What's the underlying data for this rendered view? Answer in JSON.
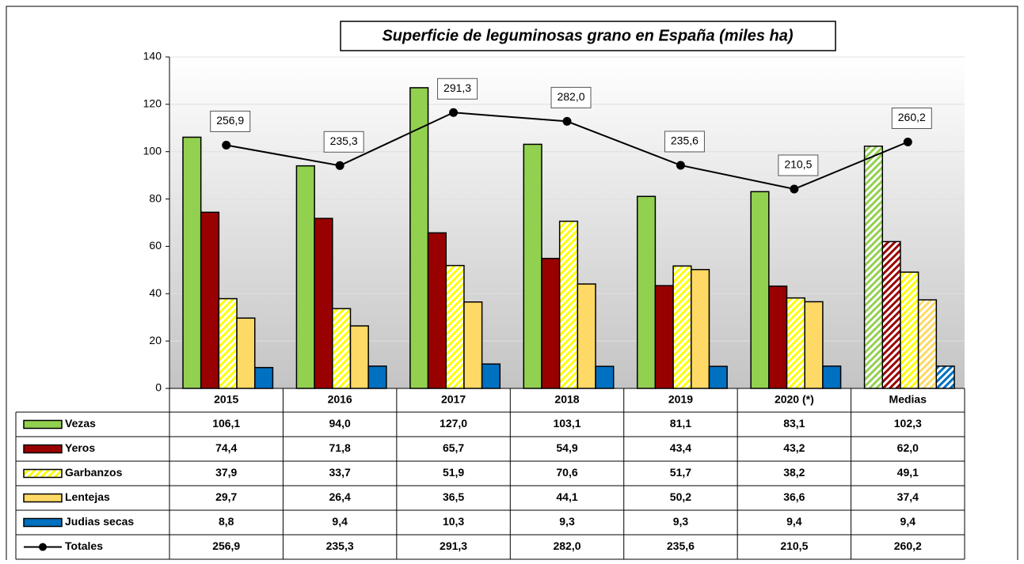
{
  "chart_data": {
    "type": "bar",
    "title": "Superficie de leguminosas  grano  en España (miles ha)",
    "categories": [
      "2015",
      "2016",
      "2017",
      "2018",
      "2019",
      "2020 (*)",
      "Medias"
    ],
    "series": [
      {
        "name": "Vezas",
        "color": "#92d050",
        "values": [
          106.1,
          94.0,
          127.0,
          103.1,
          81.1,
          83.1,
          102.3
        ],
        "value_labels": [
          "106,1",
          "94,0",
          "127,0",
          "103,1",
          "81,1",
          "83,1",
          "102,3"
        ]
      },
      {
        "name": "Yeros",
        "color": "#990000",
        "values": [
          74.4,
          71.8,
          65.7,
          54.9,
          43.4,
          43.2,
          62.0
        ],
        "value_labels": [
          "74,4",
          "71,8",
          "65,7",
          "54,9",
          "43,4",
          "43,2",
          "62,0"
        ]
      },
      {
        "name": "Garbanzos",
        "color": "#ffff00",
        "pattern": "hatch",
        "values": [
          37.9,
          33.7,
          51.9,
          70.6,
          51.7,
          38.2,
          49.1
        ],
        "value_labels": [
          "37,9",
          "33,7",
          "51,9",
          "70,6",
          "51,7",
          "38,2",
          "49,1"
        ]
      },
      {
        "name": "Lentejas",
        "color": "#ffd966",
        "values": [
          29.7,
          26.4,
          36.5,
          44.1,
          50.2,
          36.6,
          37.4
        ],
        "value_labels": [
          "29,7",
          "26,4",
          "36,5",
          "44,1",
          "50,2",
          "36,6",
          "37,4"
        ]
      },
      {
        "name": "Judias secas",
        "color": "#0070c0",
        "values": [
          8.8,
          9.4,
          10.3,
          9.3,
          9.3,
          9.4,
          9.4
        ],
        "value_labels": [
          "8,8",
          "9,4",
          "10,3",
          "9,3",
          "9,3",
          "9,4",
          "9,4"
        ]
      },
      {
        "name": "Totales",
        "type": "line",
        "axis": "y2",
        "color": "#000000",
        "values": [
          256.9,
          235.3,
          291.3,
          282.0,
          235.6,
          210.5,
          260.2
        ],
        "value_labels": [
          "256,9",
          "235,3",
          "291,3",
          "282,0",
          "235,6",
          "210,5",
          "260,2"
        ]
      }
    ],
    "ylim": [
      0,
      140
    ],
    "yticks": [
      0,
      20,
      40,
      60,
      80,
      100,
      120,
      140
    ],
    "y2lim": [
      0,
      350
    ],
    "grid": true
  }
}
